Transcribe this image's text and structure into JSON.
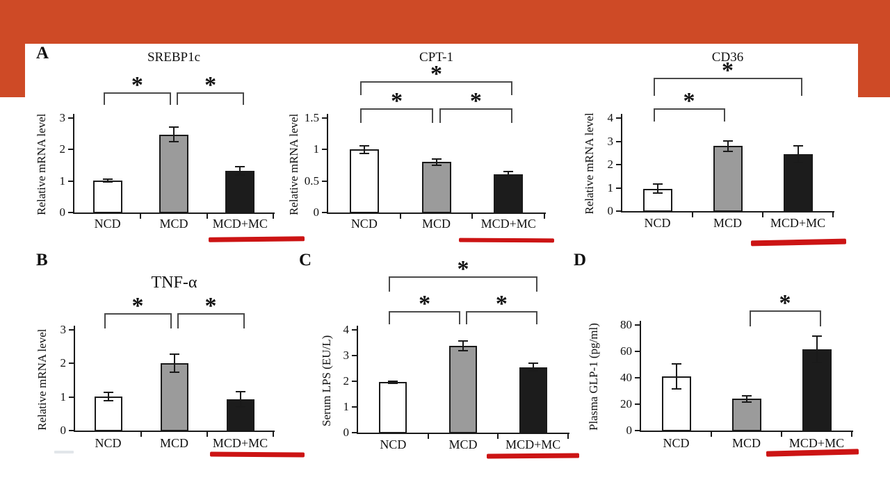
{
  "page": {
    "banner_color": "#ce4a26",
    "panel_background": "#ffffff",
    "underline_color": "#cc1414",
    "axis_color": "#1a1a1a",
    "bracket_color": "#4a4a4a",
    "artifact_dash_color": "#e2e6ea"
  },
  "panel_labels": [
    "A",
    "B",
    "C",
    "D"
  ],
  "chart_data": [
    {
      "id": "srebp1c",
      "type": "bar",
      "panel_label": "A",
      "title": "SREBP1c",
      "ylabel": "Relative mRNA level",
      "categories": [
        "NCD",
        "MCD",
        "MCD+MC"
      ],
      "values": [
        1.02,
        2.48,
        1.32
      ],
      "errors": [
        0.04,
        0.23,
        0.13
      ],
      "yticks": [
        0,
        1,
        2,
        3
      ],
      "ylim": [
        0,
        3
      ],
      "bar_fills": [
        "#ffffff",
        "#9b9b9b",
        "#1c1c1c"
      ],
      "brackets": [
        {
          "from": 0,
          "to": 1,
          "tier": "low",
          "label": "*"
        },
        {
          "from": 1,
          "to": 2,
          "tier": "low",
          "label": "*"
        }
      ],
      "underline_category": "MCD+MC"
    },
    {
      "id": "cpt1",
      "type": "bar",
      "panel_label": "",
      "title": "CPT-1",
      "ylabel": "Relative mRNA level",
      "categories": [
        "NCD",
        "MCD",
        "MCD+MC"
      ],
      "values": [
        1.0,
        0.8,
        0.61
      ],
      "errors": [
        0.06,
        0.05,
        0.04
      ],
      "yticks": [
        0,
        0.5,
        1,
        1.5
      ],
      "ylim": [
        0,
        1.5
      ],
      "bar_fills": [
        "#ffffff",
        "#9b9b9b",
        "#1c1c1c"
      ],
      "brackets": [
        {
          "from": 0,
          "to": 2,
          "tier": "high",
          "label": "*"
        },
        {
          "from": 0,
          "to": 1,
          "tier": "low",
          "label": "*"
        },
        {
          "from": 1,
          "to": 2,
          "tier": "low",
          "label": "*"
        }
      ],
      "underline_category": "MCD+MC"
    },
    {
      "id": "cd36",
      "type": "bar",
      "panel_label": "",
      "title": "CD36",
      "ylabel": "Relative mRNA level",
      "categories": [
        "NCD",
        "MCD",
        "MCD+MC"
      ],
      "values": [
        0.97,
        2.8,
        2.45
      ],
      "errors": [
        0.2,
        0.22,
        0.36
      ],
      "yticks": [
        0,
        1,
        2,
        3,
        4
      ],
      "ylim": [
        0,
        4
      ],
      "bar_fills": [
        "#ffffff",
        "#9b9b9b",
        "#1c1c1c"
      ],
      "brackets": [
        {
          "from": 0,
          "to": 2,
          "tier": "high",
          "label": "*"
        },
        {
          "from": 0,
          "to": 1,
          "tier": "low",
          "label": "*"
        }
      ],
      "underline_category": "MCD+MC"
    },
    {
      "id": "tnf-alpha",
      "type": "bar",
      "panel_label": "B",
      "title": "TNF-α",
      "ylabel": "Relative mRNA level",
      "categories": [
        "NCD",
        "MCD",
        "MCD+MC"
      ],
      "values": [
        1.02,
        2.0,
        0.93
      ],
      "errors": [
        0.12,
        0.27,
        0.22
      ],
      "yticks": [
        0,
        1,
        2,
        3
      ],
      "ylim": [
        0,
        3
      ],
      "bar_fills": [
        "#ffffff",
        "#9b9b9b",
        "#1c1c1c"
      ],
      "brackets": [
        {
          "from": 0,
          "to": 1,
          "tier": "low",
          "label": "*"
        },
        {
          "from": 1,
          "to": 2,
          "tier": "low",
          "label": "*"
        }
      ],
      "underline_category": "MCD+MC"
    },
    {
      "id": "serum-lps",
      "type": "bar",
      "panel_label": "C",
      "title": "",
      "ylabel": "Serum LPS (EU/L)",
      "categories": [
        "NCD",
        "MCD",
        "MCD+MC"
      ],
      "values": [
        1.97,
        3.37,
        2.55
      ],
      "errors": [
        0.04,
        0.19,
        0.15
      ],
      "yticks": [
        0,
        1,
        2,
        3,
        4
      ],
      "ylim": [
        0,
        4
      ],
      "bar_fills": [
        "#ffffff",
        "#9b9b9b",
        "#1c1c1c"
      ],
      "brackets": [
        {
          "from": 0,
          "to": 2,
          "tier": "high",
          "label": "*"
        },
        {
          "from": 0,
          "to": 1,
          "tier": "low",
          "label": "*"
        },
        {
          "from": 1,
          "to": 2,
          "tier": "low",
          "label": "*"
        }
      ],
      "underline_category": "MCD+MC"
    },
    {
      "id": "plasma-glp1",
      "type": "bar",
      "panel_label": "D",
      "title": "",
      "ylabel": "Plasma GLP-1 (pg/ml)",
      "categories": [
        "NCD",
        "MCD",
        "MCD+MC"
      ],
      "values": [
        41,
        24,
        61.5
      ],
      "errors": [
        9.5,
        2.5,
        10
      ],
      "yticks": [
        0,
        20,
        40,
        60,
        80
      ],
      "ylim": [
        0,
        80
      ],
      "bar_fills": [
        "#ffffff",
        "#9b9b9b",
        "#1c1c1c"
      ],
      "brackets": [
        {
          "from": 1,
          "to": 2,
          "tier": "low",
          "label": "*"
        }
      ],
      "underline_category": "MCD+MC"
    }
  ]
}
